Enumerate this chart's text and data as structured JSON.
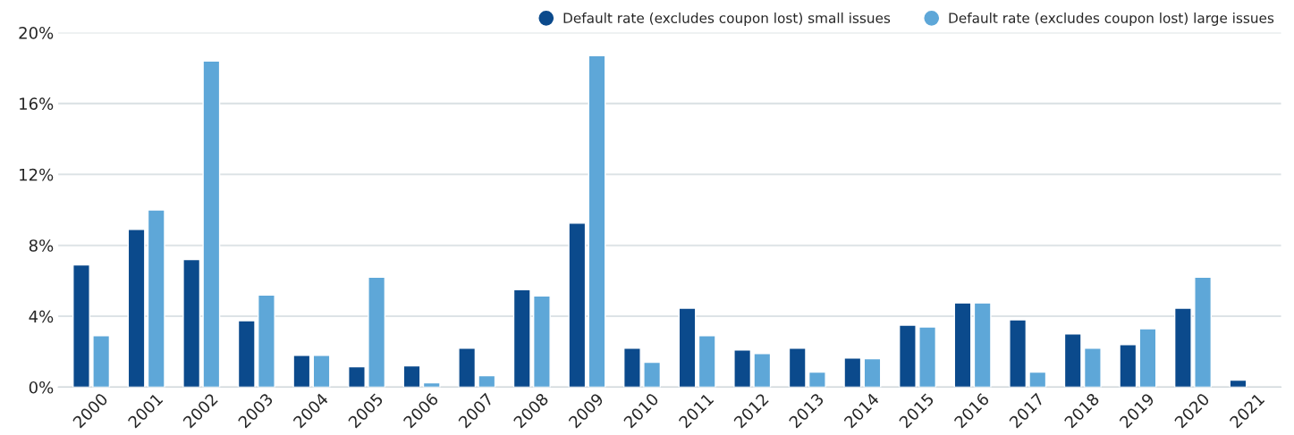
{
  "chart_data": {
    "type": "bar",
    "categories": [
      "2000",
      "2001",
      "2002",
      "2003",
      "2004",
      "2005",
      "2006",
      "2007",
      "2008",
      "2009",
      "2010",
      "2011",
      "2012",
      "2013",
      "2014",
      "2015",
      "2016",
      "2017",
      "2018",
      "2019",
      "2020",
      "2021"
    ],
    "series": [
      {
        "name": "Default rate (excludes coupon lost) small issues",
        "color": "#0b4a8c",
        "values": [
          6.9,
          8.9,
          7.2,
          3.75,
          1.8,
          1.15,
          1.2,
          2.2,
          5.5,
          9.25,
          2.2,
          4.45,
          2.1,
          2.2,
          1.65,
          3.5,
          4.75,
          3.8,
          3.0,
          2.4,
          4.45,
          0.4
        ]
      },
      {
        "name": "Default rate (excludes coupon lost) large issues",
        "color": "#5ea7d8",
        "values": [
          2.9,
          10.0,
          18.4,
          5.2,
          1.8,
          6.2,
          0.25,
          0.65,
          5.15,
          18.7,
          1.4,
          2.9,
          1.9,
          0.85,
          1.6,
          3.4,
          4.75,
          0.85,
          2.2,
          3.3,
          6.2,
          null
        ]
      }
    ],
    "ylim": [
      0,
      20
    ],
    "yticks": [
      {
        "value": 0,
        "label": "0%"
      },
      {
        "value": 4,
        "label": "4%"
      },
      {
        "value": 8,
        "label": "8%"
      },
      {
        "value": 12,
        "label": "12%"
      },
      {
        "value": 16,
        "label": "16%"
      },
      {
        "value": 20,
        "label": "20%"
      }
    ],
    "grid": "y",
    "legend": "top right",
    "marker": "circle"
  }
}
